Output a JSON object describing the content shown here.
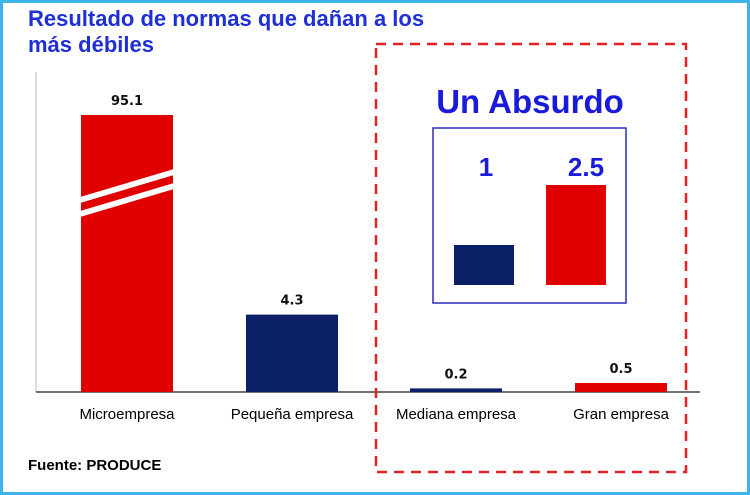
{
  "title": "Resultado de normas que dañan a los más débiles",
  "source": "Fuente: PRODUCE",
  "colors": {
    "red": "#e00000",
    "navy": "#0b1f66",
    "blue_text": "#1a1adb",
    "frame": "#3cb4e8",
    "dash": "#e22222"
  },
  "chart_data": [
    {
      "type": "bar",
      "title": "",
      "categories": [
        "Microempresa",
        "Pequeña empresa",
        "Mediana empresa",
        "Gran empresa"
      ],
      "values": [
        95.1,
        4.3,
        0.2,
        0.5
      ],
      "value_labels": [
        "95.1",
        "4.3",
        "0.2",
        "0.5"
      ],
      "bar_colors": [
        "#e00000",
        "#0b1f66",
        "#0b1f66",
        "#e00000"
      ],
      "axis_break": "Microempresa",
      "grid": false,
      "legend": "none"
    },
    {
      "type": "bar",
      "title": "Un Absurdo",
      "categories": [
        "",
        ""
      ],
      "values": [
        1,
        2.5
      ],
      "value_labels": [
        "1",
        "2.5"
      ],
      "bar_colors": [
        "#0b1f66",
        "#e00000"
      ],
      "grid": false,
      "legend": "none"
    }
  ]
}
